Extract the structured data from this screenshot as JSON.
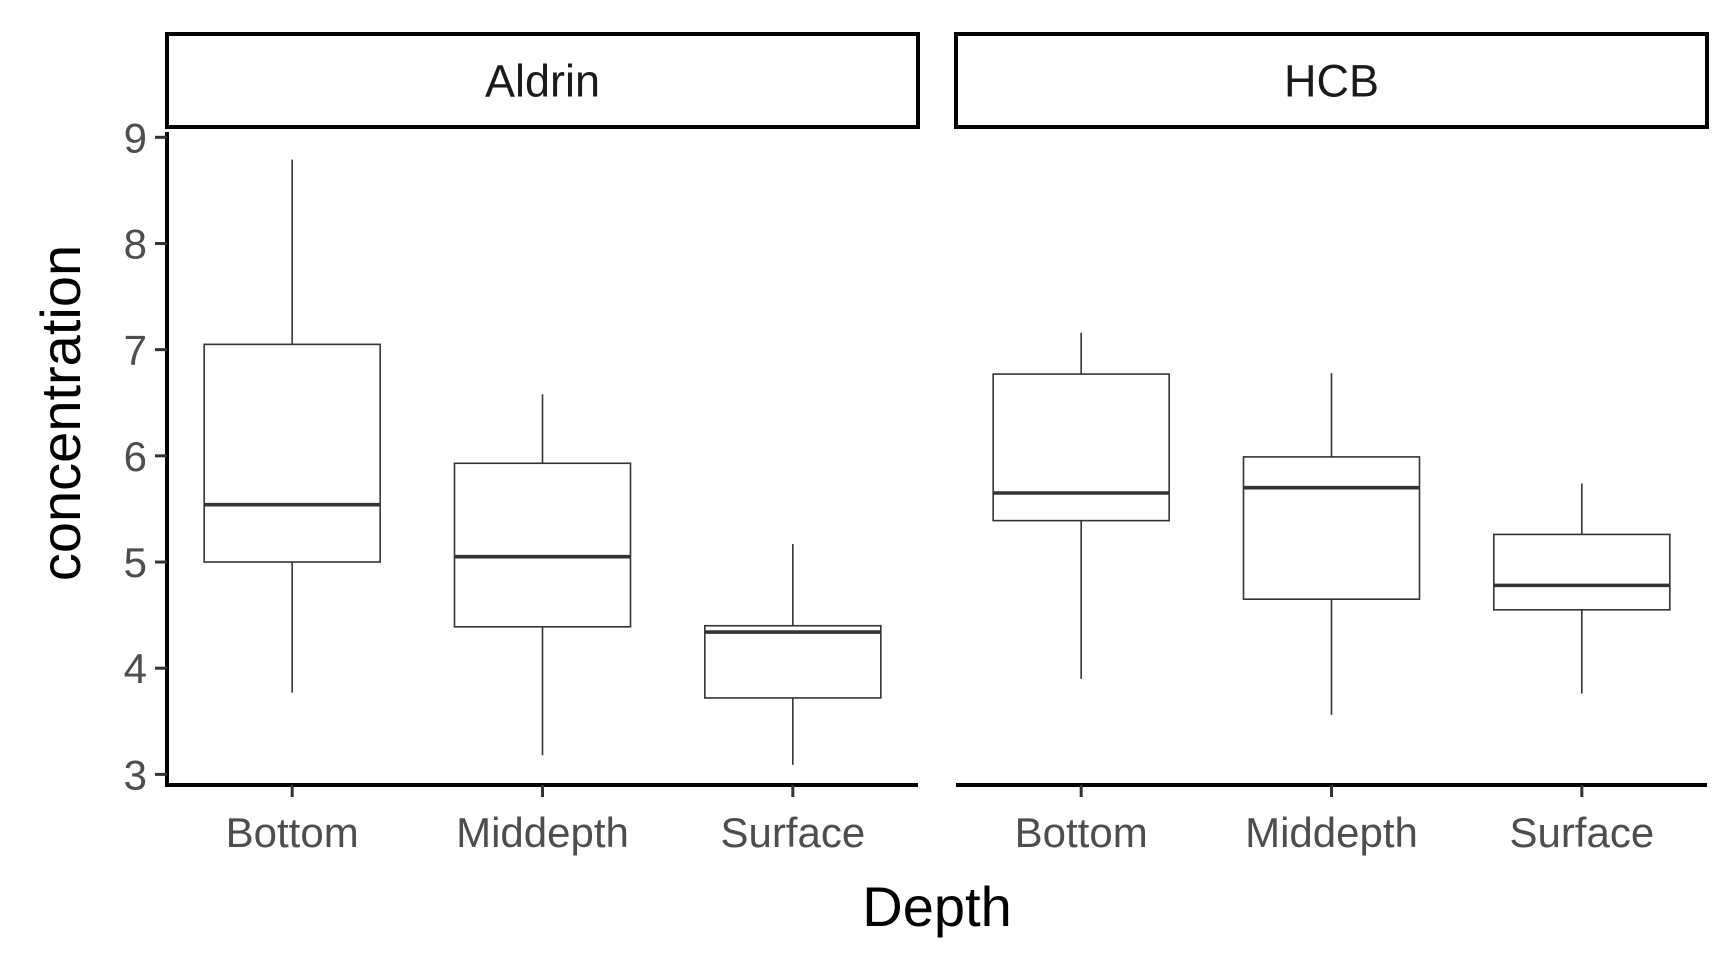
{
  "chart_data": {
    "type": "boxplot",
    "xlabel": "Depth",
    "ylabel": "concentration",
    "ylim": [
      2.9,
      9.05
    ],
    "yticks": [
      3,
      4,
      5,
      6,
      7,
      8,
      9
    ],
    "categories": [
      "Bottom",
      "Middepth",
      "Surface"
    ],
    "grid": false,
    "panels": [
      {
        "label": "Aldrin",
        "boxes": [
          {
            "category": "Bottom",
            "min": 3.77,
            "q1": 5.0,
            "median": 5.54,
            "q3": 7.05,
            "max": 8.79
          },
          {
            "category": "Middepth",
            "min": 3.18,
            "q1": 4.39,
            "median": 5.05,
            "q3": 5.93,
            "max": 6.58
          },
          {
            "category": "Surface",
            "min": 3.09,
            "q1": 3.72,
            "median": 4.34,
            "q3": 4.4,
            "max": 5.17
          }
        ]
      },
      {
        "label": "HCB",
        "boxes": [
          {
            "category": "Bottom",
            "min": 3.9,
            "q1": 5.39,
            "median": 5.65,
            "q3": 6.77,
            "max": 7.16
          },
          {
            "category": "Middepth",
            "min": 3.56,
            "q1": 4.65,
            "median": 5.7,
            "q3": 5.99,
            "max": 6.78
          },
          {
            "category": "Surface",
            "min": 3.76,
            "q1": 4.55,
            "median": 4.78,
            "q3": 5.26,
            "max": 5.74
          }
        ]
      }
    ]
  }
}
